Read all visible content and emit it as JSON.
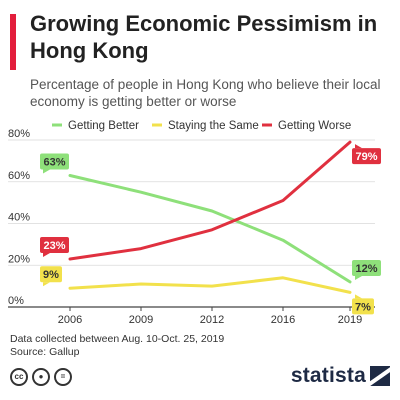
{
  "header": {
    "title": "Growing Economic Pessimism in Hong Kong",
    "subtitle": "Percentage of people in Hong Kong who believe their local economy is getting better or worse",
    "accent_color": "#e31e3c"
  },
  "footer": {
    "note_line1": "Data collected between Aug. 10-Oct. 25, 2019",
    "note_line2": "Source: Gallup",
    "icons": [
      "creative-commons-icon",
      "attribution-icon",
      "no-derivatives-icon"
    ],
    "brand": "statista"
  },
  "chart_data": {
    "type": "line",
    "x": [
      "2006",
      "2009",
      "2012",
      "2016",
      "2019"
    ],
    "ylim": [
      0,
      80
    ],
    "yticks": [
      0,
      20,
      40,
      60,
      80
    ],
    "ytick_labels": [
      "0%",
      "20%",
      "40%",
      "60%",
      "80%"
    ],
    "grid": true,
    "legend_position": "top",
    "series": [
      {
        "name": "Getting Better",
        "color": "#8ee07a",
        "values": [
          63,
          55,
          46,
          32,
          12
        ],
        "labels": [
          {
            "index": 0,
            "text": "63%",
            "side": "above"
          },
          {
            "index": 4,
            "text": "12%",
            "side": "above"
          }
        ]
      },
      {
        "name": "Staying the Same",
        "color": "#f2e14c",
        "values": [
          9,
          11,
          10,
          14,
          7
        ],
        "labels": [
          {
            "index": 0,
            "text": "9%",
            "side": "above"
          },
          {
            "index": 4,
            "text": "7%",
            "side": "below"
          }
        ]
      },
      {
        "name": "Getting Worse",
        "color": "#e0303f",
        "values": [
          23,
          28,
          37,
          51,
          79
        ],
        "labels": [
          {
            "index": 0,
            "text": "23%",
            "side": "above"
          },
          {
            "index": 4,
            "text": "79%",
            "side": "below"
          }
        ]
      }
    ]
  }
}
